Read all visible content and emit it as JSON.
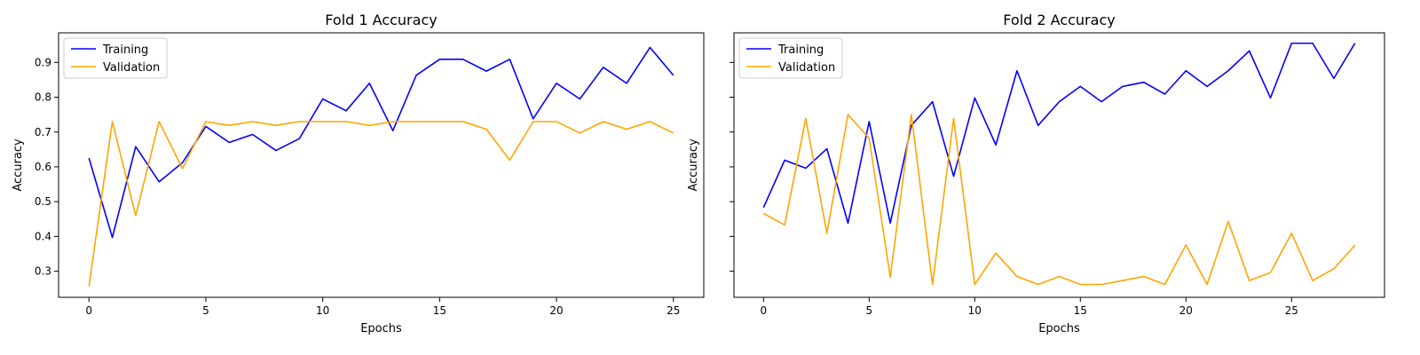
{
  "chart_data": [
    {
      "type": "line",
      "title": "Fold 1 Accuracy",
      "xlabel": "Epochs",
      "ylabel": "Accuracy",
      "xlim": [
        -1.3,
        26.3
      ],
      "ylim": [
        0.225,
        0.985
      ],
      "xticks": [
        0,
        5,
        10,
        15,
        20,
        25
      ],
      "yticks": [
        0.3,
        0.4,
        0.5,
        0.6,
        0.7,
        0.8,
        0.9
      ],
      "ytick_labels": [
        "0.3",
        "0.4",
        "0.5",
        "0.6",
        "0.7",
        "0.8",
        "0.9"
      ],
      "legend": "top-left",
      "series": [
        {
          "name": "Training",
          "color": "#0000ff",
          "x": [
            0,
            1,
            2,
            3,
            4,
            5,
            6,
            7,
            8,
            9,
            10,
            11,
            12,
            13,
            14,
            15,
            16,
            17,
            18,
            19,
            20,
            21,
            22,
            23,
            24,
            25
          ],
          "values": [
            0.625,
            0.397,
            0.658,
            0.557,
            0.612,
            0.716,
            0.67,
            0.693,
            0.647,
            0.681,
            0.795,
            0.761,
            0.84,
            0.704,
            0.863,
            0.909,
            0.909,
            0.875,
            0.909,
            0.738,
            0.84,
            0.795,
            0.886,
            0.84,
            0.943,
            0.863
          ]
        },
        {
          "name": "Validation",
          "color": "#ffa500",
          "x": [
            0,
            1,
            2,
            3,
            4,
            5,
            6,
            7,
            8,
            9,
            10,
            11,
            12,
            13,
            14,
            15,
            16,
            17,
            18,
            19,
            20,
            21,
            22,
            23,
            24,
            25
          ],
          "values": [
            0.257,
            0.73,
            0.46,
            0.73,
            0.595,
            0.73,
            0.719,
            0.73,
            0.719,
            0.73,
            0.73,
            0.73,
            0.719,
            0.73,
            0.73,
            0.73,
            0.73,
            0.708,
            0.619,
            0.73,
            0.73,
            0.697,
            0.73,
            0.708,
            0.73,
            0.697
          ]
        }
      ]
    },
    {
      "type": "line",
      "title": "Fold 2 Accuracy",
      "xlabel": "Epochs",
      "ylabel": "Accuracy",
      "xlim": [
        -1.4,
        29.4
      ],
      "ylim": [
        0.225,
        0.985
      ],
      "xticks": [
        0,
        5,
        10,
        15,
        20,
        25
      ],
      "yticks": [
        0.3,
        0.4,
        0.5,
        0.6,
        0.7,
        0.8,
        0.9
      ],
      "ytick_labels": [
        "",
        "",
        "",
        "",
        "",
        "",
        ""
      ],
      "legend": "top-left",
      "series": [
        {
          "name": "Training",
          "color": "#0000ff",
          "x": [
            0,
            1,
            2,
            3,
            4,
            5,
            6,
            7,
            8,
            9,
            10,
            11,
            12,
            13,
            14,
            15,
            16,
            17,
            18,
            19,
            20,
            21,
            22,
            23,
            24,
            25,
            26,
            27,
            28
          ],
          "values": [
            0.483,
            0.619,
            0.596,
            0.652,
            0.438,
            0.73,
            0.438,
            0.719,
            0.787,
            0.573,
            0.798,
            0.663,
            0.876,
            0.719,
            0.787,
            0.831,
            0.787,
            0.831,
            0.843,
            0.809,
            0.876,
            0.831,
            0.876,
            0.933,
            0.798,
            0.955,
            0.955,
            0.854,
            0.955
          ]
        },
        {
          "name": "Validation",
          "color": "#ffa500",
          "x": [
            0,
            1,
            2,
            3,
            4,
            5,
            6,
            7,
            8,
            9,
            10,
            11,
            12,
            13,
            14,
            15,
            16,
            17,
            18,
            19,
            20,
            21,
            22,
            23,
            24,
            25,
            26,
            27,
            28
          ],
          "values": [
            0.466,
            0.433,
            0.739,
            0.409,
            0.75,
            0.682,
            0.283,
            0.75,
            0.262,
            0.739,
            0.262,
            0.352,
            0.285,
            0.262,
            0.285,
            0.262,
            0.262,
            0.273,
            0.285,
            0.262,
            0.375,
            0.262,
            0.443,
            0.273,
            0.296,
            0.409,
            0.273,
            0.307,
            0.375
          ]
        }
      ]
    }
  ]
}
